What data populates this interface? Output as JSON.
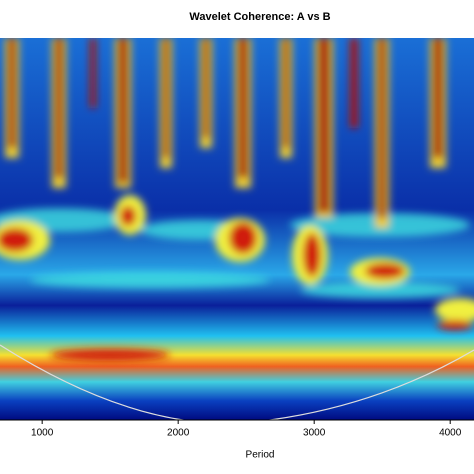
{
  "chart_data": {
    "type": "heatmap",
    "title": "Wavelet Coherence: A vs B",
    "xlabel": "Period",
    "xlim": [
      690,
      4175
    ],
    "xticks": [
      1000,
      2000,
      3000,
      4000
    ]
  }
}
